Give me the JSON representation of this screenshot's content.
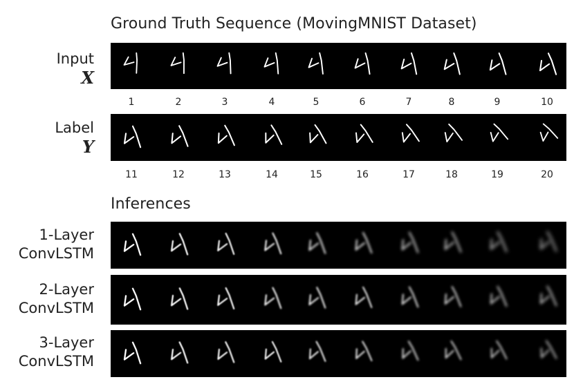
{
  "figure": {
    "ground_truth_title": "Ground Truth Sequence (MovingMNIST Dataset)",
    "inferences_title": "Inferences"
  },
  "rows": {
    "input": {
      "label": "Input",
      "symbol": "X",
      "frame_numbers": [
        "1",
        "2",
        "3",
        "4",
        "5",
        "6",
        "7",
        "8",
        "9",
        "10"
      ]
    },
    "label": {
      "label": "Label",
      "symbol": "Y",
      "frame_numbers": [
        "11",
        "12",
        "13",
        "14",
        "15",
        "16",
        "17",
        "18",
        "19",
        "20"
      ]
    },
    "inference_1": {
      "label_line1": "1-Layer",
      "label_line2": "ConvLSTM"
    },
    "inference_2": {
      "label_line1": "2-Layer",
      "label_line2": "ConvLSTM"
    },
    "inference_3": {
      "label_line1": "3-Layer",
      "label_line2": "ConvLSTM"
    }
  },
  "colors": {
    "frame_background": "#000000",
    "digit": "#ffffff",
    "text": "#222222"
  }
}
